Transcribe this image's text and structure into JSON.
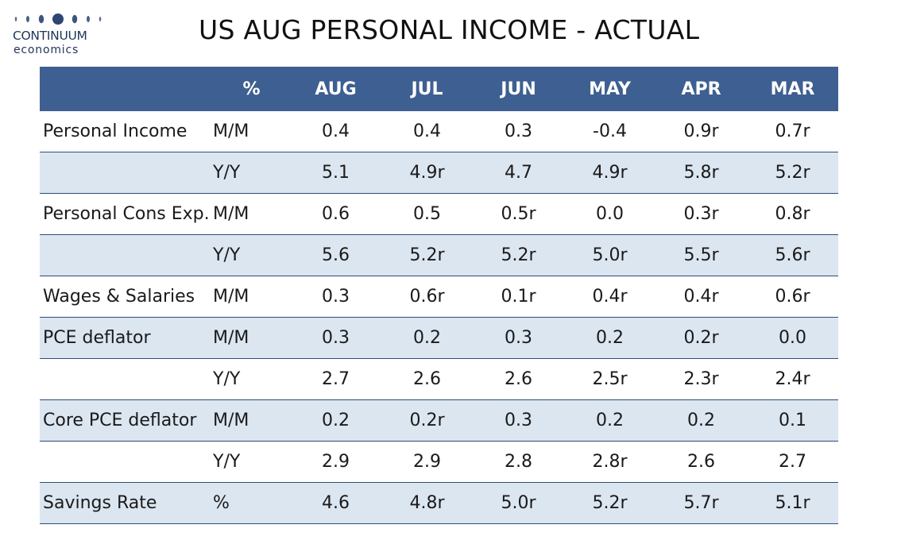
{
  "logo": {
    "name": "CONTINUUM",
    "sub": "economics"
  },
  "title": "US AUG PERSONAL INCOME - ACTUAL",
  "colors": {
    "header_bg": "#3e5f91",
    "header_text": "#ffffff",
    "shaded_row": "#dce6f1",
    "rule": "#2e4c7a",
    "logo": "#1f3557"
  },
  "table": {
    "headers": [
      "",
      "%",
      "AUG",
      "JUL",
      "JUN",
      "MAY",
      "APR",
      "MAR"
    ],
    "rows": [
      {
        "label": "Personal Income",
        "unit": "M/M",
        "values": [
          "0.4",
          "0.4",
          "0.3",
          "-0.4",
          "0.9r",
          "0.7r"
        ]
      },
      {
        "label": "",
        "unit": "Y/Y",
        "values": [
          "5.1",
          "4.9r",
          "4.7",
          "4.9r",
          "5.8r",
          "5.2r"
        ]
      },
      {
        "label": "Personal Cons Exp.",
        "unit": "M/M",
        "values": [
          "0.6",
          "0.5",
          "0.5r",
          "0.0",
          "0.3r",
          "0.8r"
        ]
      },
      {
        "label": "",
        "unit": "Y/Y",
        "values": [
          "5.6",
          "5.2r",
          "5.2r",
          "5.0r",
          "5.5r",
          "5.6r"
        ]
      },
      {
        "label": "Wages & Salaries",
        "unit": "M/M",
        "values": [
          "0.3",
          "0.6r",
          "0.1r",
          "0.4r",
          "0.4r",
          "0.6r"
        ]
      },
      {
        "label": "PCE deflator",
        "unit": "M/M",
        "values": [
          "0.3",
          "0.2",
          "0.3",
          "0.2",
          "0.2r",
          "0.0"
        ]
      },
      {
        "label": "",
        "unit": "Y/Y",
        "values": [
          "2.7",
          "2.6",
          "2.6",
          "2.5r",
          "2.3r",
          "2.4r"
        ]
      },
      {
        "label": "Core PCE deflator",
        "unit": "M/M",
        "values": [
          "0.2",
          "0.2r",
          "0.3",
          "0.2",
          "0.2",
          "0.1"
        ]
      },
      {
        "label": "",
        "unit": "Y/Y",
        "values": [
          "2.9",
          "2.9",
          "2.8",
          "2.8r",
          "2.6",
          "2.7"
        ]
      },
      {
        "label": "Savings Rate",
        "unit": "%",
        "values": [
          "4.6",
          "4.8r",
          "5.0r",
          "5.2r",
          "5.7r",
          "5.1r"
        ]
      }
    ]
  }
}
